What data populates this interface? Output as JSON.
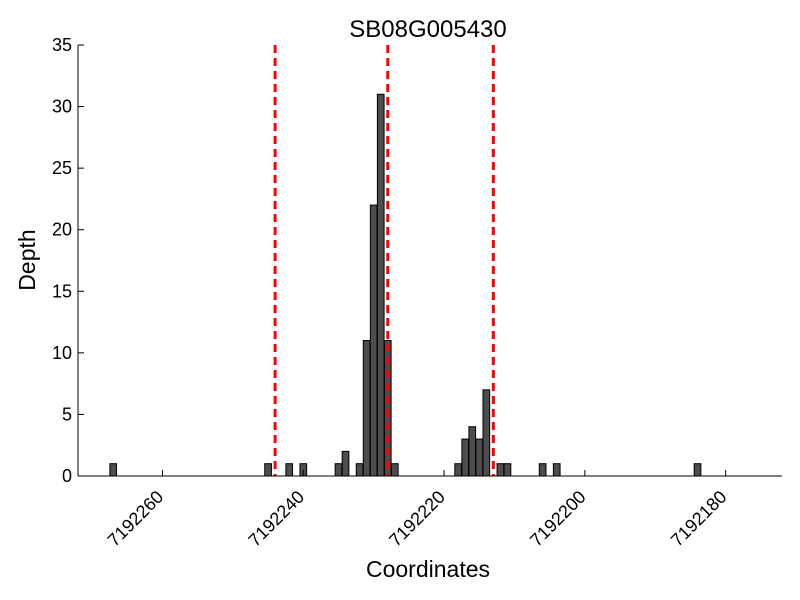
{
  "chart_data": {
    "type": "bar",
    "title": "SB08G005430",
    "xlabel": "Coordinates",
    "ylabel": "Depth",
    "xlim": [
      7192272,
      7192172
    ],
    "x_inverted": true,
    "ylim": [
      0,
      35
    ],
    "yticks": [
      0,
      5,
      10,
      15,
      20,
      25,
      30,
      35
    ],
    "xticks": [
      7192260,
      7192240,
      7192220,
      7192200,
      7192180
    ],
    "grid": false,
    "bar_color": "#4d4d4d",
    "bars": [
      {
        "x": 7192267,
        "y": 1
      },
      {
        "x": 7192245,
        "y": 1
      },
      {
        "x": 7192242,
        "y": 1
      },
      {
        "x": 7192240,
        "y": 1
      },
      {
        "x": 7192235,
        "y": 1
      },
      {
        "x": 7192234,
        "y": 2
      },
      {
        "x": 7192232,
        "y": 1
      },
      {
        "x": 7192231,
        "y": 11
      },
      {
        "x": 7192230,
        "y": 22
      },
      {
        "x": 7192229,
        "y": 31
      },
      {
        "x": 7192228,
        "y": 11
      },
      {
        "x": 7192227,
        "y": 1
      },
      {
        "x": 7192218,
        "y": 1
      },
      {
        "x": 7192217,
        "y": 3
      },
      {
        "x": 7192216,
        "y": 4
      },
      {
        "x": 7192215,
        "y": 3
      },
      {
        "x": 7192214,
        "y": 7
      },
      {
        "x": 7192212,
        "y": 1
      },
      {
        "x": 7192211,
        "y": 1
      },
      {
        "x": 7192206,
        "y": 1
      },
      {
        "x": 7192204,
        "y": 1
      },
      {
        "x": 7192184,
        "y": 1
      }
    ],
    "vlines": [
      {
        "x": 7192244,
        "color": "#ff0000",
        "style": "dashed"
      },
      {
        "x": 7192228,
        "color": "#ff0000",
        "style": "dashed"
      },
      {
        "x": 7192213,
        "color": "#ff0000",
        "style": "dashed"
      }
    ]
  }
}
